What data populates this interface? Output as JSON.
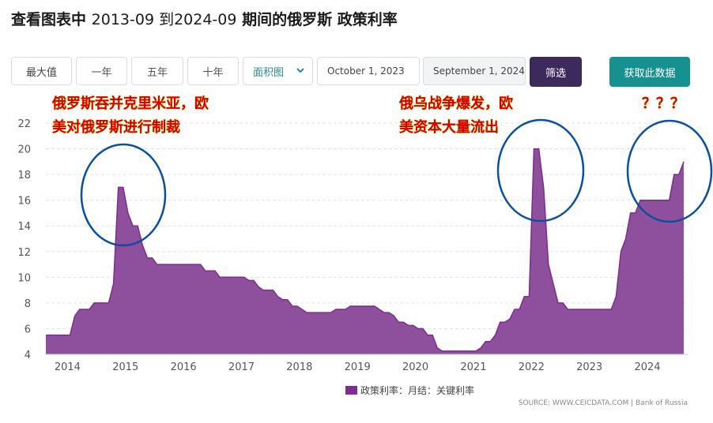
{
  "title": {
    "main": "查看图表中",
    "range": "2013-09 到2024-09",
    "tail": "期间的俄罗斯 政策利率"
  },
  "toolbar": {
    "range_buttons": [
      "最大值",
      "一年",
      "五年",
      "十年"
    ],
    "chart_type": "面积图",
    "start_date": "October 1, 2023",
    "end_date": "September 1, 2024",
    "filter_label": "筛选",
    "get_data_label": "获取此数据"
  },
  "annotations": {
    "left_line1": "俄罗斯吞并克里米亚，欧",
    "left_line2": "美对俄罗斯进行制裁",
    "mid_line1": "俄乌战争爆发，欧",
    "mid_line2": "美资本大量流出",
    "right": "？？？"
  },
  "colors": {
    "area_fill": "#8e4f9c",
    "area_stroke": "#7d2c8f",
    "circle": "#0a4fa0",
    "filter_btn": "#3d2a5c",
    "get_data_btn": "#17918f"
  },
  "source": "SOURCE: WWW.CEICDATA.COM | Bank of Russia",
  "chart_data": {
    "type": "area",
    "title": "查看图表中 2013-09 到2024-09 期间的俄罗斯 政策利率",
    "legend": [
      "政策利率：月结：关键利率"
    ],
    "x_ticks": [
      "2014",
      "2015",
      "2016",
      "2017",
      "2018",
      "2019",
      "2020",
      "2021",
      "2022",
      "2023",
      "2024"
    ],
    "y_ticks": [
      4,
      6,
      8,
      10,
      12,
      14,
      16,
      18,
      20,
      22
    ],
    "ylim": [
      4,
      22
    ],
    "grid": "horizontal",
    "series": [
      {
        "name": "政策利率：月结：关键利率",
        "points": [
          [
            "2013-09",
            5.5
          ],
          [
            "2013-10",
            5.5
          ],
          [
            "2013-11",
            5.5
          ],
          [
            "2013-12",
            5.5
          ],
          [
            "2014-01",
            5.5
          ],
          [
            "2014-02",
            5.5
          ],
          [
            "2014-03",
            7.0
          ],
          [
            "2014-04",
            7.5
          ],
          [
            "2014-05",
            7.5
          ],
          [
            "2014-06",
            7.5
          ],
          [
            "2014-07",
            8.0
          ],
          [
            "2014-08",
            8.0
          ],
          [
            "2014-09",
            8.0
          ],
          [
            "2014-10",
            8.0
          ],
          [
            "2014-11",
            9.5
          ],
          [
            "2014-12",
            17.0
          ],
          [
            "2015-01",
            17.0
          ],
          [
            "2015-02",
            15.0
          ],
          [
            "2015-03",
            14.0
          ],
          [
            "2015-04",
            14.0
          ],
          [
            "2015-05",
            12.5
          ],
          [
            "2015-06",
            11.5
          ],
          [
            "2015-07",
            11.5
          ],
          [
            "2015-08",
            11.0
          ],
          [
            "2015-09",
            11.0
          ],
          [
            "2015-10",
            11.0
          ],
          [
            "2015-11",
            11.0
          ],
          [
            "2015-12",
            11.0
          ],
          [
            "2016-01",
            11.0
          ],
          [
            "2016-02",
            11.0
          ],
          [
            "2016-03",
            11.0
          ],
          [
            "2016-04",
            11.0
          ],
          [
            "2016-05",
            11.0
          ],
          [
            "2016-06",
            10.5
          ],
          [
            "2016-07",
            10.5
          ],
          [
            "2016-08",
            10.5
          ],
          [
            "2016-09",
            10.0
          ],
          [
            "2016-10",
            10.0
          ],
          [
            "2016-11",
            10.0
          ],
          [
            "2016-12",
            10.0
          ],
          [
            "2017-01",
            10.0
          ],
          [
            "2017-02",
            10.0
          ],
          [
            "2017-03",
            9.75
          ],
          [
            "2017-04",
            9.75
          ],
          [
            "2017-05",
            9.25
          ],
          [
            "2017-06",
            9.0
          ],
          [
            "2017-07",
            9.0
          ],
          [
            "2017-08",
            9.0
          ],
          [
            "2017-09",
            8.5
          ],
          [
            "2017-10",
            8.25
          ],
          [
            "2017-11",
            8.25
          ],
          [
            "2017-12",
            7.75
          ],
          [
            "2018-01",
            7.75
          ],
          [
            "2018-02",
            7.5
          ],
          [
            "2018-03",
            7.25
          ],
          [
            "2018-04",
            7.25
          ],
          [
            "2018-05",
            7.25
          ],
          [
            "2018-06",
            7.25
          ],
          [
            "2018-07",
            7.25
          ],
          [
            "2018-08",
            7.25
          ],
          [
            "2018-09",
            7.5
          ],
          [
            "2018-10",
            7.5
          ],
          [
            "2018-11",
            7.5
          ],
          [
            "2018-12",
            7.75
          ],
          [
            "2019-01",
            7.75
          ],
          [
            "2019-02",
            7.75
          ],
          [
            "2019-03",
            7.75
          ],
          [
            "2019-04",
            7.75
          ],
          [
            "2019-05",
            7.75
          ],
          [
            "2019-06",
            7.5
          ],
          [
            "2019-07",
            7.25
          ],
          [
            "2019-08",
            7.25
          ],
          [
            "2019-09",
            7.0
          ],
          [
            "2019-10",
            6.5
          ],
          [
            "2019-11",
            6.5
          ],
          [
            "2019-12",
            6.25
          ],
          [
            "2020-01",
            6.25
          ],
          [
            "2020-02",
            6.0
          ],
          [
            "2020-03",
            6.0
          ],
          [
            "2020-04",
            5.5
          ],
          [
            "2020-05",
            5.5
          ],
          [
            "2020-06",
            4.5
          ],
          [
            "2020-07",
            4.25
          ],
          [
            "2020-08",
            4.25
          ],
          [
            "2020-09",
            4.25
          ],
          [
            "2020-10",
            4.25
          ],
          [
            "2020-11",
            4.25
          ],
          [
            "2020-12",
            4.25
          ],
          [
            "2021-01",
            4.25
          ],
          [
            "2021-02",
            4.25
          ],
          [
            "2021-03",
            4.5
          ],
          [
            "2021-04",
            5.0
          ],
          [
            "2021-05",
            5.0
          ],
          [
            "2021-06",
            5.5
          ],
          [
            "2021-07",
            6.5
          ],
          [
            "2021-08",
            6.5
          ],
          [
            "2021-09",
            6.75
          ],
          [
            "2021-10",
            7.5
          ],
          [
            "2021-11",
            7.5
          ],
          [
            "2021-12",
            8.5
          ],
          [
            "2022-01",
            8.5
          ],
          [
            "2022-02",
            20.0
          ],
          [
            "2022-03",
            20.0
          ],
          [
            "2022-04",
            17.0
          ],
          [
            "2022-05",
            11.0
          ],
          [
            "2022-06",
            9.5
          ],
          [
            "2022-07",
            8.0
          ],
          [
            "2022-08",
            8.0
          ],
          [
            "2022-09",
            7.5
          ],
          [
            "2022-10",
            7.5
          ],
          [
            "2022-11",
            7.5
          ],
          [
            "2022-12",
            7.5
          ],
          [
            "2023-01",
            7.5
          ],
          [
            "2023-02",
            7.5
          ],
          [
            "2023-03",
            7.5
          ],
          [
            "2023-04",
            7.5
          ],
          [
            "2023-05",
            7.5
          ],
          [
            "2023-06",
            7.5
          ],
          [
            "2023-07",
            8.5
          ],
          [
            "2023-08",
            12.0
          ],
          [
            "2023-09",
            13.0
          ],
          [
            "2023-10",
            15.0
          ],
          [
            "2023-11",
            15.0
          ],
          [
            "2023-12",
            16.0
          ],
          [
            "2024-01",
            16.0
          ],
          [
            "2024-02",
            16.0
          ],
          [
            "2024-03",
            16.0
          ],
          [
            "2024-04",
            16.0
          ],
          [
            "2024-05",
            16.0
          ],
          [
            "2024-06",
            16.0
          ],
          [
            "2024-07",
            18.0
          ],
          [
            "2024-08",
            18.0
          ],
          [
            "2024-09",
            19.0
          ]
        ]
      }
    ]
  }
}
